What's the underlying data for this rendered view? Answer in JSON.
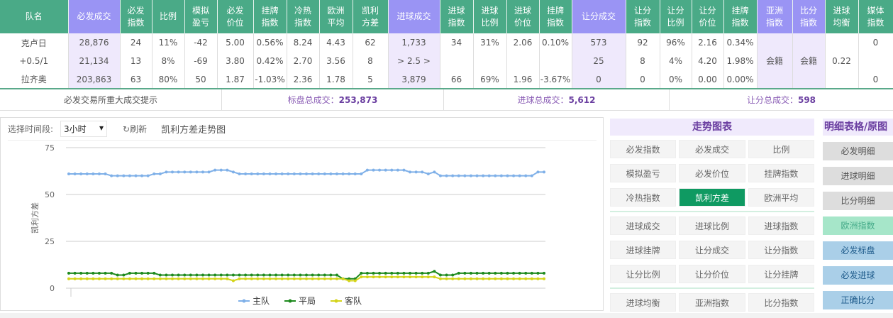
{
  "table": {
    "headers": [
      {
        "label": "队名",
        "pu": false
      },
      {
        "label": "必发成交",
        "pu": true
      },
      {
        "label": "必发\n指数",
        "pu": false
      },
      {
        "label": "比例",
        "pu": false
      },
      {
        "label": "模拟\n盈亏",
        "pu": false
      },
      {
        "label": "必发\n价位",
        "pu": false
      },
      {
        "label": "挂牌\n指数",
        "pu": false
      },
      {
        "label": "冷热\n指数",
        "pu": false
      },
      {
        "label": "欧洲\n平均",
        "pu": false
      },
      {
        "label": "凯利\n方差",
        "pu": false
      },
      {
        "label": "进球成交",
        "pu": true
      },
      {
        "label": "进球\n指数",
        "pu": false
      },
      {
        "label": "进球\n比例",
        "pu": false
      },
      {
        "label": "进球\n价位",
        "pu": false
      },
      {
        "label": "挂牌\n指数",
        "pu": false
      },
      {
        "label": "让分成交",
        "pu": true
      },
      {
        "label": "让分\n指数",
        "pu": false
      },
      {
        "label": "让分\n比例",
        "pu": false
      },
      {
        "label": "让分\n价位",
        "pu": false
      },
      {
        "label": "挂牌\n指数",
        "pu": false
      },
      {
        "label": "亚洲\n指数",
        "pu": true
      },
      {
        "label": "比分\n指数",
        "pu": true
      },
      {
        "label": "进球\n均衡",
        "pu": false
      },
      {
        "label": "媒体\n指数",
        "pu": false
      }
    ],
    "rows": [
      [
        "克卢日",
        "28,876",
        "24",
        "11%",
        "-42",
        "5.00",
        "0.56%",
        "8.24",
        "4.43",
        "62",
        "1,733",
        "34",
        "31%",
        "2.06",
        "0.10%",
        "573",
        "92",
        "96%",
        "2.16",
        "0.34%",
        "0"
      ],
      [
        "+0.5/1",
        "21,134",
        "13",
        "8%",
        "-69",
        "3.80",
        "0.42%",
        "2.70",
        "3.56",
        "8",
        "> 2.5 >",
        "",
        "",
        "",
        "",
        "25",
        "8",
        "4%",
        "4.20",
        "1.98%",
        ""
      ],
      [
        "拉齐奥",
        "203,863",
        "63",
        "80%",
        "50",
        "1.87",
        "-1.03%",
        "2.36",
        "1.78",
        "5",
        "3,879",
        "66",
        "69%",
        "1.96",
        "-3.67%",
        "0",
        "0",
        "0%",
        "0.00",
        "0.00%",
        "0"
      ]
    ],
    "merged": {
      "asia": "会籍",
      "score": "会籍",
      "goal_balance": "0.22"
    }
  },
  "summary": {
    "notice": "必发交易所重大成交提示",
    "total_label": "标盘总成交：",
    "total": "253,873",
    "goals_label": "进球总成交：",
    "goals": "5,612",
    "handicap_label": "让分总成交：",
    "handicap": "598"
  },
  "toolbar": {
    "period_label": "选择时间段:",
    "period_value": "3小时",
    "refresh": "刷新",
    "chart_title": "凯利方差走势图"
  },
  "chart_data": {
    "type": "line",
    "title": "凯利方差走势图",
    "ylabel": "凯利方差",
    "ylim": [
      0,
      75
    ],
    "yticks": [
      0,
      25,
      50,
      75
    ],
    "grid": true,
    "legend": "bottom",
    "series": [
      {
        "name": "主队",
        "color": "#7fb0e8",
        "runs": [
          [
            61,
            7
          ],
          [
            60,
            7
          ],
          [
            61,
            2
          ],
          [
            62,
            8
          ],
          [
            63,
            3
          ],
          [
            62,
            1
          ],
          [
            61,
            21
          ],
          [
            63,
            7
          ],
          [
            62,
            3
          ],
          [
            61,
            1
          ],
          [
            62,
            1
          ],
          [
            60,
            16
          ],
          [
            62,
            2
          ]
        ]
      },
      {
        "name": "平局",
        "color": "#1e8a1e",
        "runs": [
          [
            8,
            8
          ],
          [
            7,
            2
          ],
          [
            8,
            5
          ],
          [
            7,
            30
          ],
          [
            5,
            3
          ],
          [
            8,
            12
          ],
          [
            9,
            1
          ],
          [
            7,
            3
          ],
          [
            8,
            15
          ]
        ]
      },
      {
        "name": "客队",
        "color": "#d4d41a",
        "runs": [
          [
            5,
            27
          ],
          [
            4,
            1
          ],
          [
            5,
            18
          ],
          [
            4,
            2
          ],
          [
            6,
            13
          ],
          [
            5,
            18
          ]
        ]
      }
    ]
  },
  "trend": {
    "title": "走势图表",
    "groups": [
      [
        "必发指数",
        "必发成交",
        "比例",
        "模拟盈亏",
        "必发价位",
        "挂牌指数",
        "冷热指数",
        "凯利方差",
        "欧洲平均"
      ],
      [
        "进球成交",
        "进球比例",
        "进球指数",
        "进球挂牌",
        "让分成交",
        "让分指数",
        "让分比例",
        "让分价位",
        "让分挂牌"
      ],
      [
        "进球均衡",
        "亚洲指数",
        "比分指数"
      ]
    ],
    "active": "凯利方差"
  },
  "detail": {
    "title": "明细表格/原图",
    "items": [
      {
        "label": "必发明细",
        "style": "g"
      },
      {
        "label": "进球明细",
        "style": "g"
      },
      {
        "label": "比分明细",
        "style": "g"
      },
      {
        "label": "欧洲指数",
        "style": "m"
      },
      {
        "label": "必发标盘",
        "style": "l"
      },
      {
        "label": "必发进球",
        "style": "l"
      },
      {
        "label": "正确比分",
        "style": "l"
      }
    ]
  }
}
